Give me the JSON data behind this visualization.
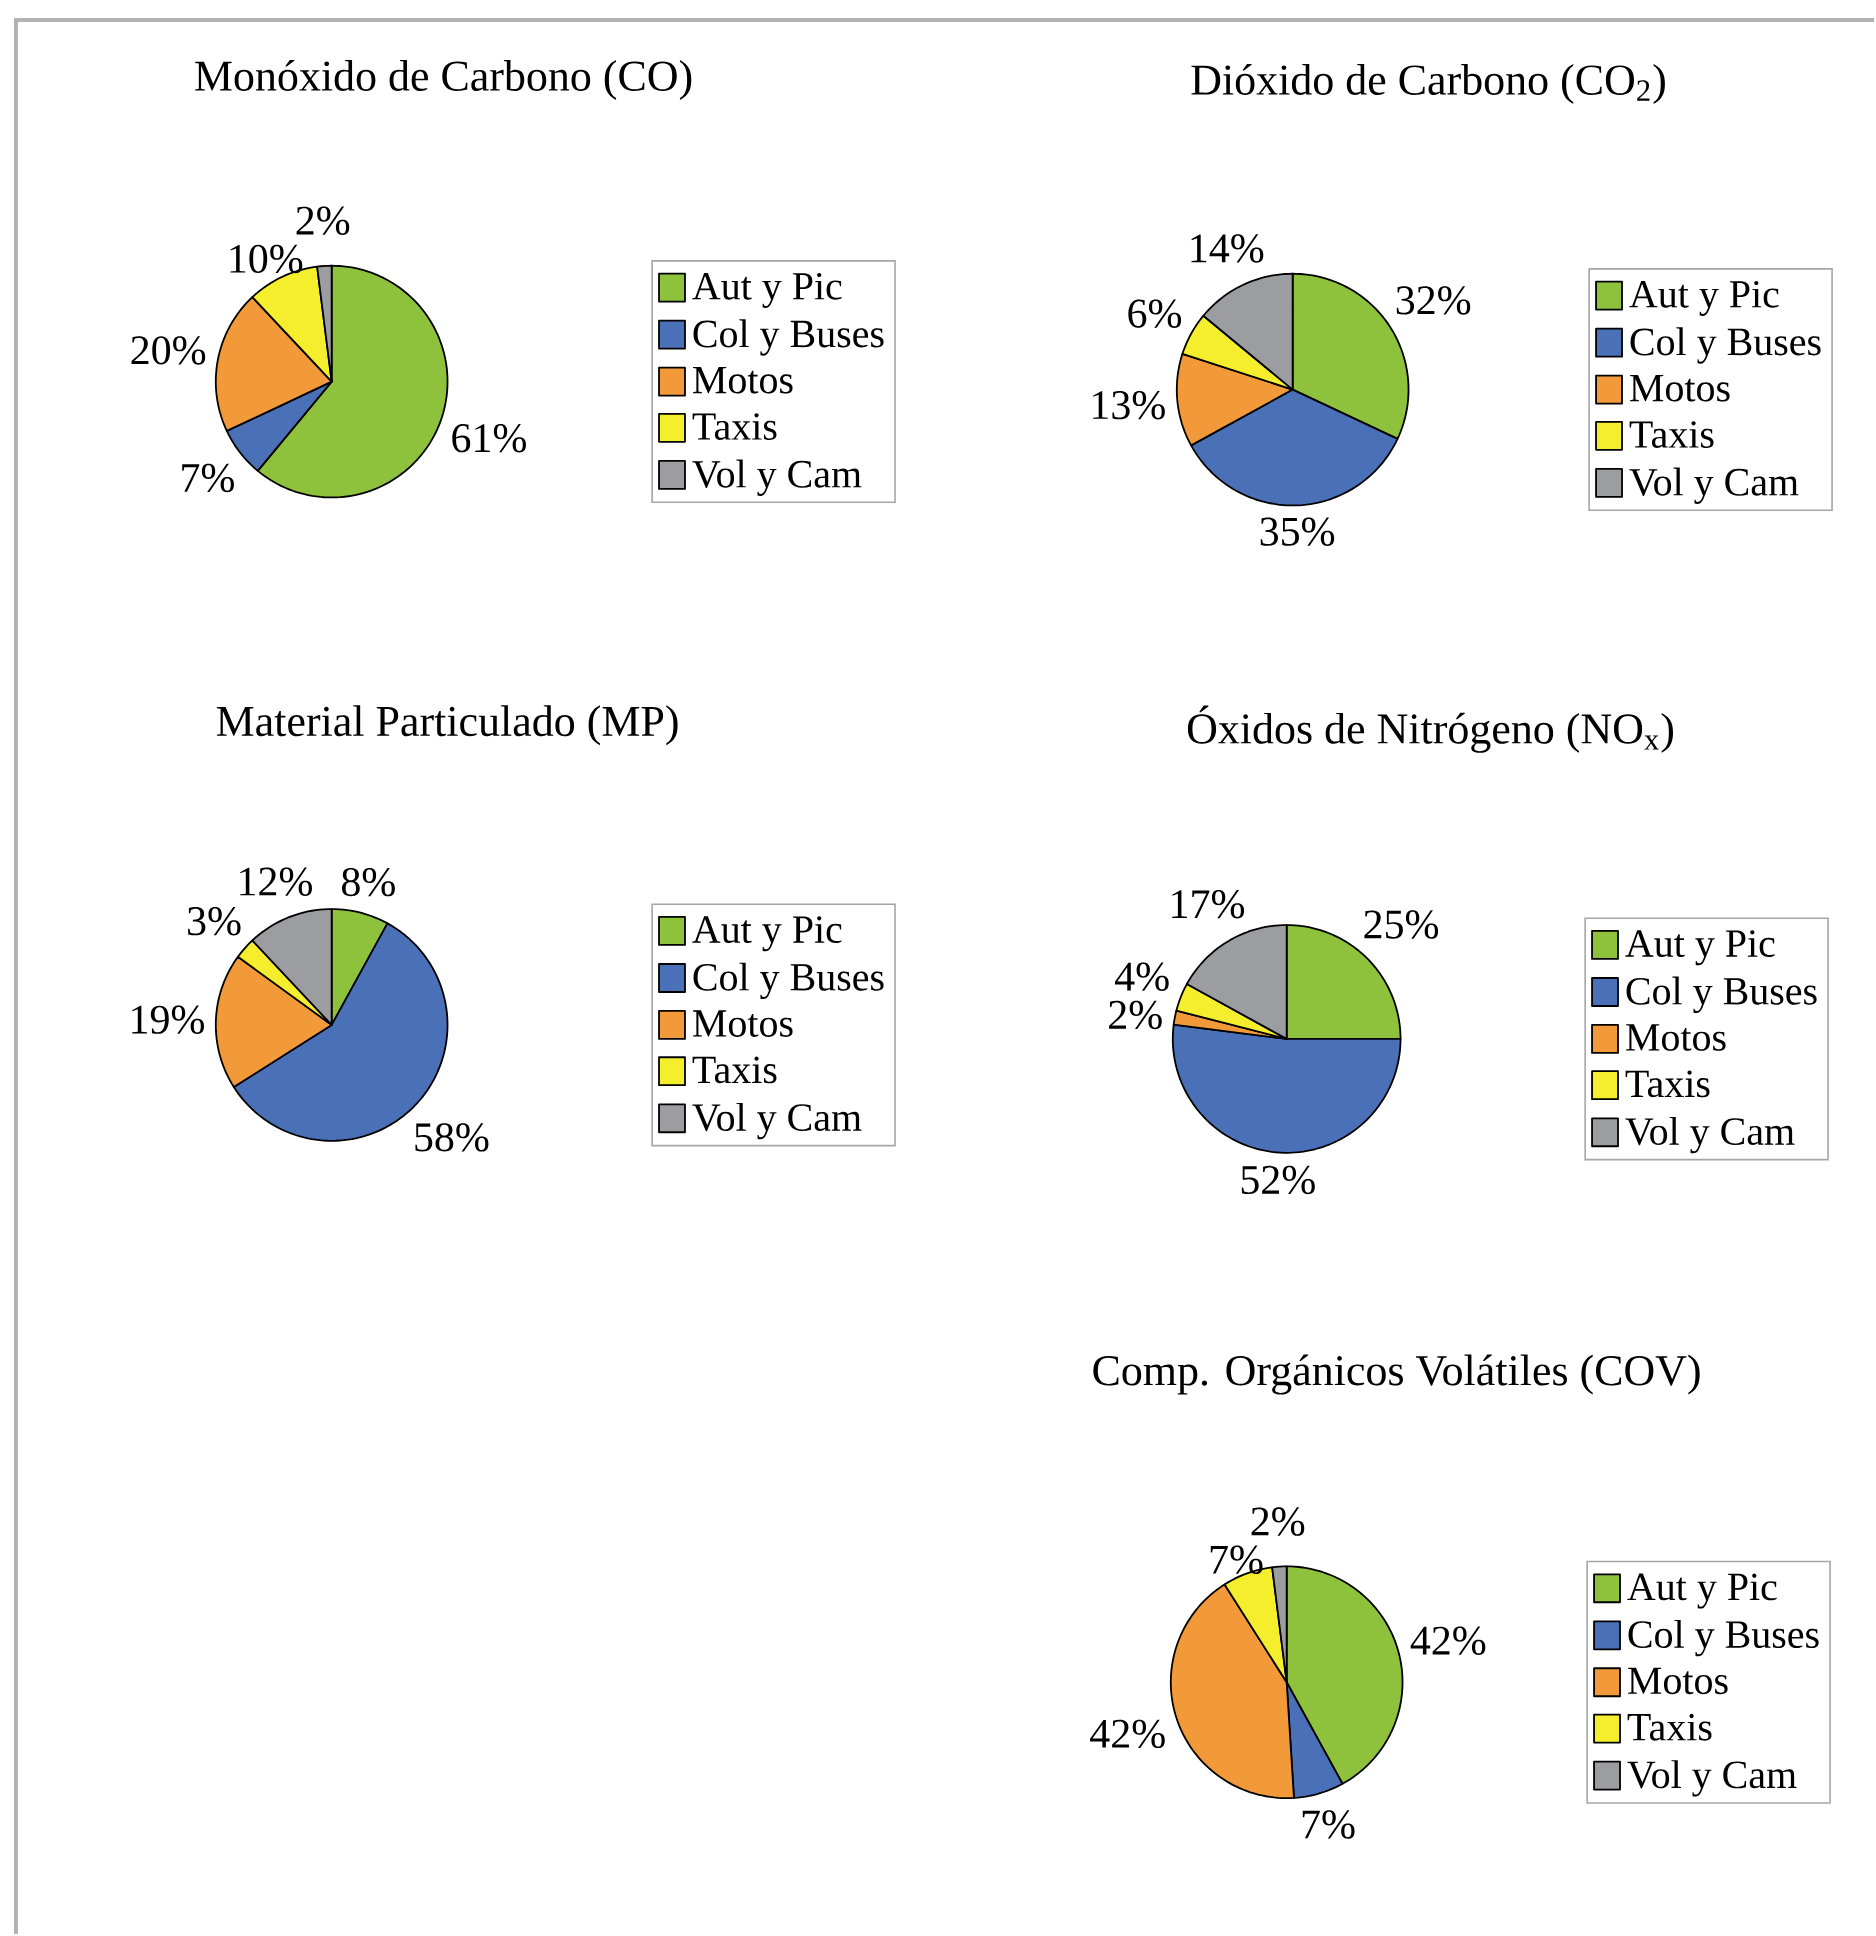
{
  "chart_data": [
    {
      "type": "pie",
      "title": "Monóxido de Carbono (CO)",
      "categories": [
        "Aut y Pic",
        "Col y Buses",
        "Motos",
        "Taxis",
        "Vol y Cam"
      ],
      "values": [
        61,
        7,
        20,
        10,
        2
      ],
      "colors": [
        "#8fc23c",
        "#4a71b8",
        "#f29a3a",
        "#f4ee2c",
        "#9b9da1"
      ],
      "value_labels": [
        "61%",
        "7%",
        "20%",
        "10%",
        "2%"
      ],
      "legend": "right"
    },
    {
      "type": "pie",
      "title": "Dióxido de Carbono (CO$_{2}$)",
      "categories": [
        "Aut y Pic",
        "Col y Buses",
        "Motos",
        "Taxis",
        "Vol y Cam"
      ],
      "values": [
        32,
        35,
        13,
        6,
        14
      ],
      "colors": [
        "#8fc23c",
        "#4a71b8",
        "#f29a3a",
        "#f4ee2c",
        "#9b9da1"
      ],
      "value_labels": [
        "32%",
        "35%",
        "13%",
        "6%",
        "14%"
      ],
      "legend": "right"
    },
    {
      "type": "pie",
      "title": "Material Particulado (MP)",
      "categories": [
        "Aut y Pic",
        "Col y Buses",
        "Motos",
        "Taxis",
        "Vol y Cam"
      ],
      "values": [
        8,
        58,
        19,
        3,
        12
      ],
      "colors": [
        "#8fc23c",
        "#4a71b8",
        "#f29a3a",
        "#f4ee2c",
        "#9b9da1"
      ],
      "value_labels": [
        "8%",
        "58%",
        "19%",
        "3%",
        "12%"
      ],
      "legend": "right"
    },
    {
      "type": "pie",
      "title": "Óxidos de Nitrógeno (NO$_{x}$)",
      "categories": [
        "Aut y Pic",
        "Col y Buses",
        "Motos",
        "Taxis",
        "Vol y Cam"
      ],
      "values": [
        25,
        52,
        2,
        4,
        17
      ],
      "colors": [
        "#8fc23c",
        "#4a71b8",
        "#f29a3a",
        "#f4ee2c",
        "#9b9da1"
      ],
      "value_labels": [
        "25%",
        "52%",
        "2%",
        "4%",
        "17%"
      ],
      "legend": "right"
    },
    {
      "type": "pie",
      "title": "Comp. Orgánicos Volátiles (COV)",
      "categories": [
        "Aut y Pic",
        "Col y Buses",
        "Motos",
        "Taxis",
        "Vol y Cam"
      ],
      "values": [
        42,
        7,
        42,
        7,
        2
      ],
      "colors": [
        "#8fc23c",
        "#4a71b8",
        "#f29a3a",
        "#f4ee2c",
        "#9b9da1"
      ],
      "value_labels": [
        "42%",
        "7%",
        "42%",
        "7%",
        "2%"
      ],
      "legend": "right"
    }
  ]
}
